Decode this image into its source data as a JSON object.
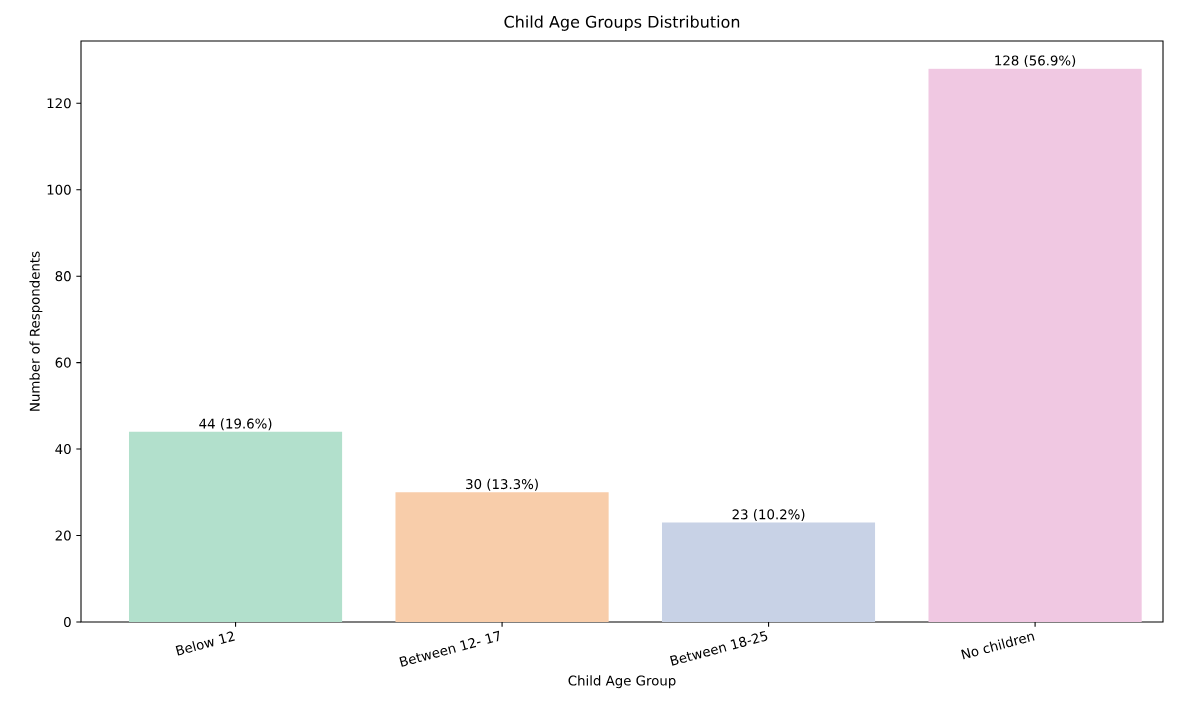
{
  "chart_data": {
    "type": "bar",
    "title": "Child Age Groups Distribution",
    "xlabel": "Child Age Group",
    "ylabel": "Number of Respondents",
    "categories": [
      "Below 12",
      "Between 12- 17",
      "Between 18-25",
      "No children"
    ],
    "values": [
      44,
      30,
      23,
      128
    ],
    "colors": [
      "#b2e0cc",
      "#f8cdaa",
      "#c8d2e6",
      "#f0c8e2"
    ],
    "value_labels": [
      "44 (19.6%)",
      "30 (13.3%)",
      "23 (10.2%)",
      "128 (56.9%)"
    ],
    "ylim": [
      0,
      134.4
    ],
    "yticks": [
      0,
      20,
      40,
      60,
      80,
      100,
      120
    ],
    "grid": false
  }
}
